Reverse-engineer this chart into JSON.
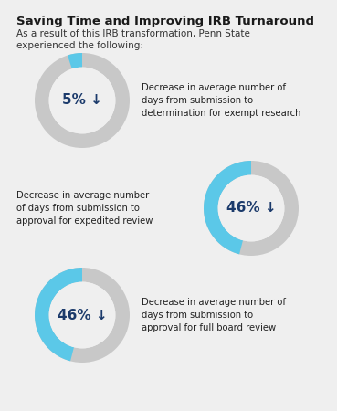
{
  "title": "Saving Time and Improving IRB Turnaround",
  "subtitle": "As a result of this IRB transformation, Penn State\nexperienced the following:",
  "background_color": "#efefef",
  "title_color": "#1a1a1a",
  "subtitle_color": "#333333",
  "donut_fg_color": "#5bc8e8",
  "donut_bg_color": "#c8c8c8",
  "text_dark_blue": "#1b3a6b",
  "circles": [
    {
      "pct_label": "5%",
      "pct_filled": 5,
      "pos": "left",
      "description": "Decrease in average number of\ndays from submission to\ndetermination for exempt research"
    },
    {
      "pct_label": "46%",
      "pct_filled": 46,
      "pos": "right",
      "description": "Decrease in average number\nof days from submission to\napproval for expedited review"
    },
    {
      "pct_label": "46%",
      "pct_filled": 46,
      "pos": "left",
      "description": "Decrease in average number of\ndays from submission to\napproval for full board review"
    }
  ]
}
